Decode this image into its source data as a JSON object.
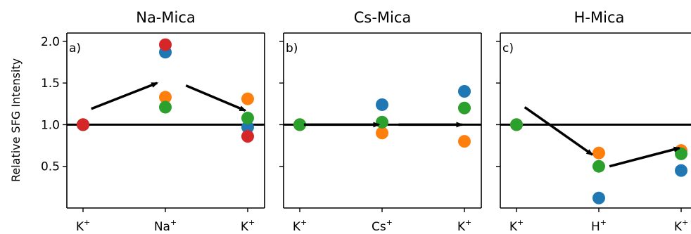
{
  "chart_data": {
    "type": "scatter",
    "ylabel": "Relative SFG Intensity",
    "ylim": [
      0.0,
      2.1
    ],
    "y_ticks": [
      "0.5",
      "1.0",
      "1.5",
      "2.0"
    ],
    "reference_line_y": 1.0,
    "series_colors": [
      "#1f77b4",
      "#ff7f0e",
      "#2ca02c",
      "#d62728"
    ],
    "panels": [
      {
        "title": "Na-Mica",
        "panel_label": "a)",
        "categories": [
          {
            "base": "K",
            "sup": "+"
          },
          {
            "base": "Na",
            "sup": "+"
          },
          {
            "base": "K",
            "sup": "+"
          }
        ],
        "series": [
          {
            "values": [
              1.0,
              1.87,
              0.97
            ]
          },
          {
            "values": [
              1.0,
              1.33,
              1.31
            ]
          },
          {
            "values": [
              1.0,
              1.21,
              1.08
            ]
          },
          {
            "values": [
              1.0,
              1.96,
              0.86
            ]
          }
        ],
        "arrows": [
          {
            "from": [
              0.1,
              1.19
            ],
            "to": [
              0.9,
              1.5
            ]
          },
          {
            "from": [
              1.25,
              1.47
            ],
            "to": [
              1.97,
              1.17
            ]
          }
        ]
      },
      {
        "title": "Cs-Mica",
        "panel_label": "b)",
        "categories": [
          {
            "base": "K",
            "sup": "+"
          },
          {
            "base": "Cs",
            "sup": "+"
          },
          {
            "base": "K",
            "sup": "+"
          }
        ],
        "series": [
          {
            "values": [
              1.0,
              1.24,
              1.4
            ]
          },
          {
            "values": [
              1.0,
              0.9,
              0.8
            ]
          },
          {
            "values": [
              1.0,
              1.03,
              1.2
            ]
          },
          {
            "values": [
              null,
              null,
              null
            ]
          }
        ],
        "arrows": [
          {
            "from": [
              0.05,
              1.0
            ],
            "to": [
              0.96,
              1.0
            ]
          },
          {
            "from": [
              1.2,
              1.0
            ],
            "to": [
              1.97,
              1.0
            ]
          }
        ]
      },
      {
        "title": "H-Mica",
        "panel_label": "c)",
        "categories": [
          {
            "base": "K",
            "sup": "+"
          },
          {
            "base": "H",
            "sup": "+"
          },
          {
            "base": "K",
            "sup": "+"
          }
        ],
        "series": [
          {
            "values": [
              1.0,
              0.12,
              0.45
            ]
          },
          {
            "values": [
              1.0,
              0.66,
              0.69
            ]
          },
          {
            "values": [
              1.0,
              0.5,
              0.65
            ]
          },
          {
            "values": [
              null,
              null,
              null
            ]
          }
        ],
        "arrows": [
          {
            "from": [
              0.1,
              1.21
            ],
            "to": [
              0.92,
              0.64
            ]
          },
          {
            "from": [
              1.13,
              0.5
            ],
            "to": [
              1.98,
              0.72
            ]
          }
        ]
      }
    ]
  }
}
